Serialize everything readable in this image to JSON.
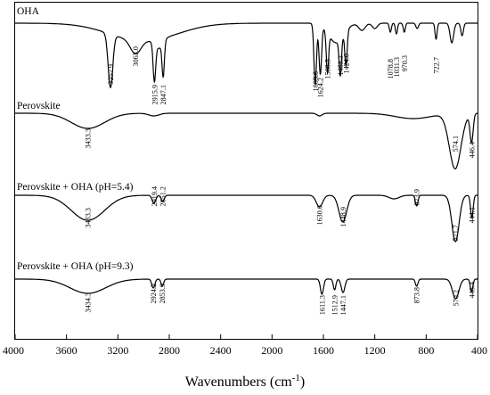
{
  "chart_data": {
    "type": "line",
    "xlabel": "Wavenumbers (cm",
    "xlabel_sup": "-1",
    "xlabel_close": ")",
    "xlim": [
      4000,
      400
    ],
    "xticks": [
      "4000",
      "3600",
      "3200",
      "2800",
      "2400",
      "2000",
      "1600",
      "1200",
      "800",
      "400"
    ],
    "x_reversed": true,
    "ylabel": "",
    "series": [
      {
        "name": "OHA",
        "peaks": [
          {
            "label": "3257.9",
            "x": 3257.9
          },
          {
            "label": "3063.0",
            "x": 3063.0
          },
          {
            "label": "2915.9",
            "x": 2915.9
          },
          {
            "label": "2847.1",
            "x": 2847.1
          },
          {
            "label": "1663.6",
            "x": 1663.6
          },
          {
            "label": "1624.2",
            "x": 1624.2
          },
          {
            "label": "1568.5",
            "x": 1568.5
          },
          {
            "label": "1468.3",
            "x": 1468.3
          },
          {
            "label": "1424.0",
            "x": 1424.0
          },
          {
            "label": "1078.8",
            "x": 1078.8
          },
          {
            "label": "1031.3",
            "x": 1031.3
          },
          {
            "label": "970.3",
            "x": 970.3
          },
          {
            "label": "722.7",
            "x": 722.7
          }
        ]
      },
      {
        "name": "Perovskite",
        "peaks": [
          {
            "label": "3433.3",
            "x": 3433.3
          },
          {
            "label": "574.1",
            "x": 574.1
          },
          {
            "label": "446.4",
            "x": 446.4
          }
        ]
      },
      {
        "name": "Perovskite + OHA (pH=5.4)",
        "peaks": [
          {
            "label": "3433.3",
            "x": 3433.3
          },
          {
            "label": "2919.4",
            "x": 2919.4
          },
          {
            "label": "2851.2",
            "x": 2851.2
          },
          {
            "label": "1630.6",
            "x": 1630.6
          },
          {
            "label": "1448.9",
            "x": 1448.9
          },
          {
            "label": "873.9",
            "x": 873.9
          },
          {
            "label": "571.7",
            "x": 571.7
          },
          {
            "label": "444.1",
            "x": 444.1
          }
        ]
      },
      {
        "name": "Perovskite + OHA (pH=9.3)",
        "peaks": [
          {
            "label": "3434.3",
            "x": 3434.3
          },
          {
            "label": "2924.2",
            "x": 2924.2
          },
          {
            "label": "2853.9",
            "x": 2853.9
          },
          {
            "label": "1611.3",
            "x": 1611.3
          },
          {
            "label": "1512.9",
            "x": 1512.9
          },
          {
            "label": "1447.1",
            "x": 1447.1
          },
          {
            "label": "873.8",
            "x": 873.8
          },
          {
            "label": "570.2",
            "x": 570.2
          },
          {
            "label": "446.4",
            "x": 446.4
          }
        ]
      }
    ]
  }
}
